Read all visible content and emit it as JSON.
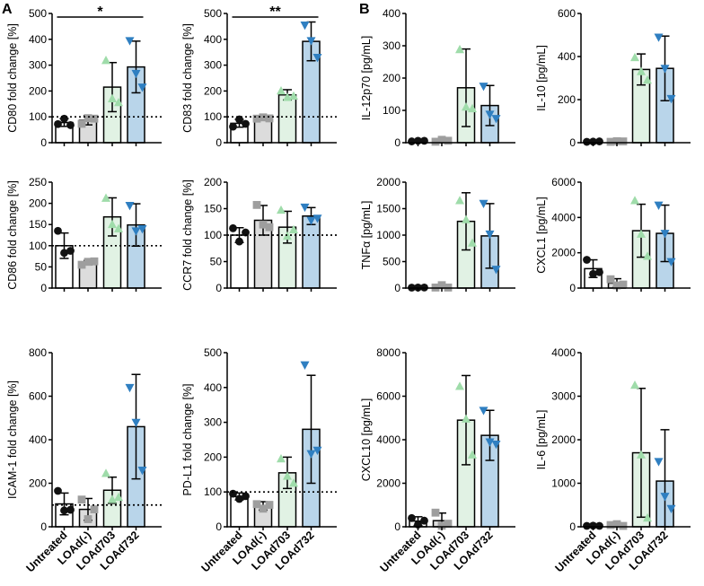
{
  "panel_labels": [
    "A",
    "B"
  ],
  "colors": {
    "Untreated": "#ffffff",
    "LOAd(-)": "#dcdcdc",
    "LOAd703": "#e1f2e4",
    "LOAd732": "#b9d5ea",
    "markers": {
      "Untreated": "#111111",
      "LOAd(-)": "#9e9e9e",
      "LOAd703": "#9fdcaa",
      "LOAd732": "#2f7fc1"
    },
    "marker_shapes": {
      "Untreated": "circle",
      "LOAd(-)": "square",
      "LOAd703": "triangle-up",
      "LOAd732": "triangle-down"
    }
  },
  "chart_data": [
    {
      "id": "cd80",
      "type": "bar",
      "panel": "A",
      "ylabel": "CD80 fold change [%]",
      "ylim": [
        0,
        500
      ],
      "yticks": [
        0,
        100,
        200,
        300,
        400,
        500
      ],
      "categories": [
        "Untreated",
        "LOAd(-)",
        "LOAd703",
        "LOAd732"
      ],
      "values": [
        78,
        87,
        215,
        293
      ],
      "errors": [
        15,
        18,
        95,
        100
      ],
      "points": [
        [
          72,
          93,
          68
        ],
        [
          73,
          95,
          93
        ],
        [
          318,
          170,
          155
        ],
        [
          395,
          268,
          215
        ]
      ],
      "reference_line": 100,
      "significance": [
        {
          "label": "*",
          "from": 0,
          "to": 3
        }
      ]
    },
    {
      "id": "cd83",
      "type": "bar",
      "panel": "A",
      "ylabel": "CD83 fold change [%]",
      "ylim": [
        0,
        500
      ],
      "yticks": [
        0,
        100,
        200,
        300,
        400,
        500
      ],
      "categories": [
        "Untreated",
        "LOAd(-)",
        "LOAd703",
        "LOAd732"
      ],
      "values": [
        75,
        95,
        185,
        392
      ],
      "errors": [
        15,
        5,
        20,
        75
      ],
      "points": [
        [
          62,
          90,
          73
        ],
        [
          93,
          98,
          94
        ],
        [
          200,
          175,
          180
        ],
        [
          455,
          395,
          330
        ]
      ],
      "reference_line": 100,
      "significance": [
        {
          "label": "**",
          "from": 0,
          "to": 3
        }
      ]
    },
    {
      "id": "il12p70",
      "type": "bar",
      "panel": "B",
      "ylabel": "IL-12p70 [pg/mL]",
      "ylim": [
        0,
        400
      ],
      "yticks": [
        0,
        100,
        200,
        300,
        400
      ],
      "categories": [
        "Untreated",
        "LOAd(-)",
        "LOAd703",
        "LOAd732"
      ],
      "values": [
        5,
        6,
        170,
        115
      ],
      "errors": [
        2,
        3,
        120,
        62
      ],
      "points": [
        [
          4,
          6,
          6
        ],
        [
          3,
          9,
          6
        ],
        [
          288,
          110,
          105
        ],
        [
          175,
          88,
          75
        ]
      ],
      "reference_line": null,
      "significance": []
    },
    {
      "id": "il10",
      "type": "bar",
      "panel": "B",
      "ylabel": "IL-10 [pg/mL]",
      "ylim": [
        0,
        600
      ],
      "yticks": [
        0,
        200,
        400,
        600
      ],
      "categories": [
        "Untreated",
        "LOAd(-)",
        "LOAd703",
        "LOAd732"
      ],
      "values": [
        5,
        6,
        340,
        345
      ],
      "errors": [
        2,
        3,
        72,
        150
      ],
      "points": [
        [
          4,
          5,
          6
        ],
        [
          4,
          7,
          6
        ],
        [
          395,
          330,
          290
        ],
        [
          490,
          345,
          205
        ]
      ],
      "reference_line": null,
      "significance": []
    },
    {
      "id": "cd86",
      "type": "bar",
      "panel": "A",
      "ylabel": "CD86 fold change [%]",
      "ylim": [
        0,
        250
      ],
      "yticks": [
        0,
        50,
        100,
        150,
        200,
        250
      ],
      "categories": [
        "Untreated",
        "LOAd(-)",
        "LOAd703",
        "LOAd732"
      ],
      "values": [
        100,
        60,
        168,
        149
      ],
      "errors": [
        30,
        5,
        45,
        50
      ],
      "points": [
        [
          135,
          83,
          88
        ],
        [
          55,
          62,
          63
        ],
        [
          212,
          150,
          140
        ],
        [
          195,
          135,
          140
        ]
      ],
      "reference_line": 100,
      "significance": []
    },
    {
      "id": "ccr7",
      "type": "bar",
      "panel": "A",
      "ylabel": "CCR7 fold change [%]",
      "ylim": [
        0,
        200
      ],
      "yticks": [
        0,
        50,
        100,
        150,
        200
      ],
      "categories": [
        "Untreated",
        "LOAd(-)",
        "LOAd703",
        "LOAd732"
      ],
      "values": [
        100,
        128,
        115,
        136
      ],
      "errors": [
        14,
        28,
        30,
        16
      ],
      "points": [
        [
          113,
          88,
          105
        ],
        [
          157,
          120,
          115
        ],
        [
          147,
          98,
          110
        ],
        [
          153,
          128,
          132
        ]
      ],
      "reference_line": 100,
      "significance": []
    },
    {
      "id": "tnfa",
      "type": "bar",
      "panel": "B",
      "ylabel": "TNFα [pg/mL]",
      "ylim": [
        0,
        2000
      ],
      "yticks": [
        0,
        500,
        1000,
        1500,
        2000
      ],
      "categories": [
        "Untreated",
        "LOAd(-)",
        "LOAd703",
        "LOAd732"
      ],
      "values": [
        10,
        25,
        1260,
        985
      ],
      "errors": [
        5,
        15,
        540,
        610
      ],
      "points": [
        [
          8,
          10,
          10
        ],
        [
          10,
          55,
          10
        ],
        [
          1650,
          1290,
          850
        ],
        [
          1600,
          1020,
          355
        ]
      ],
      "reference_line": null,
      "significance": []
    },
    {
      "id": "cxcl1",
      "type": "bar",
      "panel": "B",
      "ylabel": "CXCL1 [pg/mL]",
      "ylim": [
        0,
        6000
      ],
      "yticks": [
        0,
        2000,
        4000,
        6000
      ],
      "categories": [
        "Untreated",
        "LOAd(-)",
        "LOAd703",
        "LOAd732"
      ],
      "values": [
        1100,
        280,
        3250,
        3100
      ],
      "errors": [
        500,
        250,
        1500,
        1600
      ],
      "points": [
        [
          1600,
          800,
          900
        ],
        [
          500,
          150,
          200
        ],
        [
          4950,
          3050,
          1800
        ],
        [
          4700,
          3100,
          1500
        ]
      ],
      "reference_line": null,
      "significance": []
    },
    {
      "id": "icam1",
      "type": "bar",
      "panel": "A",
      "ylabel": "ICAM-1 fold change [%]",
      "ylim": [
        0,
        800
      ],
      "yticks": [
        0,
        200,
        400,
        600,
        800
      ],
      "categories": [
        "Untreated",
        "LOAd(-)",
        "LOAd703",
        "LOAd732"
      ],
      "values": [
        105,
        80,
        168,
        460
      ],
      "errors": [
        50,
        50,
        60,
        240
      ],
      "points": [
        [
          165,
          75,
          78
        ],
        [
          125,
          35,
          80
        ],
        [
          245,
          125,
          135
        ],
        [
          640,
          480,
          260
        ]
      ],
      "reference_line": 100,
      "significance": []
    },
    {
      "id": "pdl1",
      "type": "bar",
      "panel": "A",
      "ylabel": "PD-L1 fold change [%]",
      "ylim": [
        0,
        500
      ],
      "yticks": [
        0,
        100,
        200,
        300,
        400,
        500
      ],
      "categories": [
        "Untreated",
        "LOAd(-)",
        "LOAd703",
        "LOAd732"
      ],
      "values": [
        87,
        60,
        155,
        280
      ],
      "errors": [
        10,
        12,
        45,
        155
      ],
      "points": [
        [
          95,
          80,
          88
        ],
        [
          65,
          52,
          63
        ],
        [
          195,
          145,
          125
        ],
        [
          465,
          210,
          220
        ]
      ],
      "reference_line": 100,
      "significance": []
    },
    {
      "id": "cxcl10",
      "type": "bar",
      "panel": "B",
      "ylabel": "CXCL10 [pg/mL]",
      "ylim": [
        0,
        8000
      ],
      "yticks": [
        0,
        2000,
        4000,
        6000,
        8000
      ],
      "categories": [
        "Untreated",
        "LOAd(-)",
        "LOAd703",
        "LOAd732"
      ],
      "values": [
        260,
        280,
        4900,
        4200
      ],
      "errors": [
        200,
        350,
        2050,
        1150
      ],
      "points": [
        [
          400,
          100,
          280
        ],
        [
          650,
          50,
          140
        ],
        [
          6450,
          4950,
          3300
        ],
        [
          5350,
          3900,
          3800
        ]
      ],
      "reference_line": null,
      "significance": []
    },
    {
      "id": "il6",
      "type": "bar",
      "panel": "B",
      "ylabel": "IL-6 [pg/mL]",
      "ylim": [
        0,
        4000
      ],
      "yticks": [
        0,
        1000,
        2000,
        3000,
        4000
      ],
      "categories": [
        "Untreated",
        "LOAd(-)",
        "LOAd703",
        "LOAd732"
      ],
      "values": [
        20,
        35,
        1700,
        1050
      ],
      "errors": [
        8,
        30,
        1480,
        1180
      ],
      "points": [
        [
          20,
          25,
          20
        ],
        [
          40,
          60,
          20
        ],
        [
          3250,
          1650,
          200
        ],
        [
          1500,
          700,
          420
        ]
      ],
      "reference_line": null,
      "significance": []
    }
  ]
}
